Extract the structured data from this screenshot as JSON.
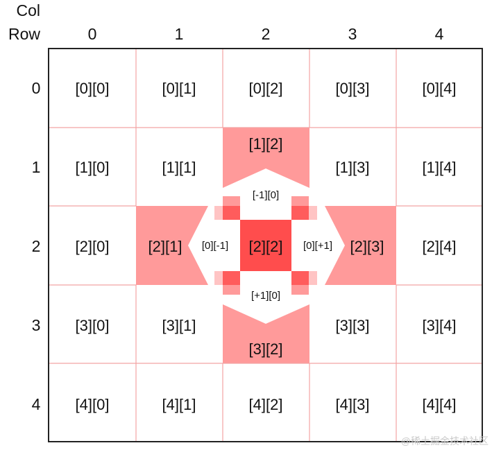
{
  "axis": {
    "col_label": "Col",
    "row_label": "Row"
  },
  "col_headers": [
    "0",
    "1",
    "2",
    "3",
    "4"
  ],
  "row_headers": [
    "0",
    "1",
    "2",
    "3",
    "4"
  ],
  "cells": [
    [
      "[0][0]",
      "[0][1]",
      "[0][2]",
      "[0][3]",
      "[0][4]"
    ],
    [
      "[1][0]",
      "[1][1]",
      "[1][2]",
      "[1][3]",
      "[1][4]"
    ],
    [
      "[2][0]",
      "[2][1]",
      "[2][2]",
      "[2][3]",
      "[2][4]"
    ],
    [
      "[3][0]",
      "[3][1]",
      "[3][2]",
      "[3][3]",
      "[3][4]"
    ],
    [
      "[4][0]",
      "[4][1]",
      "[4][2]",
      "[4][3]",
      "[4][4]"
    ]
  ],
  "offsets": {
    "up": "[-1][0]",
    "left": "[0][-1]",
    "right": "[0][+1]",
    "down": "[+1][0]"
  },
  "colors": {
    "center": "#ff4d4d",
    "neighbor": "#ff9a9a",
    "corner": "#ff5c5c",
    "corner_light": "#ffc4c4",
    "grid_line": "#f2a3a3",
    "border": "#222222"
  },
  "watermark": "@稀土掘金技术社区"
}
